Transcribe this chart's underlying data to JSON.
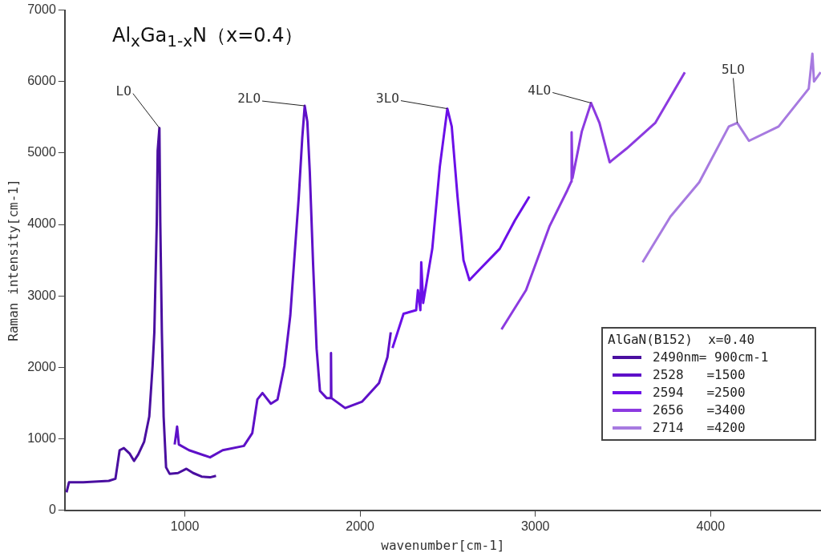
{
  "chart_data": {
    "type": "line",
    "title": "Al$_{x}$Ga$_{1-x}$N（x=0.4）",
    "xlabel": "wavenumber[cm-1]",
    "ylabel": "Raman intensity[cm-1]",
    "legend_title": "AlGaN(B152)  x=0.40",
    "legend": "bottom right",
    "grid": false,
    "marker": "none",
    "line_style": "solid",
    "xlim": [
      315,
      4630
    ],
    "xticks": [
      1000,
      2000,
      3000,
      4000
    ],
    "ylim": [
      0,
      7000
    ],
    "yticks": [
      0,
      1000,
      2000,
      3000,
      4000,
      5000,
      6000,
      7000
    ],
    "annotations": [
      {
        "text": "LO",
        "x": 855,
        "y": 5350
      },
      {
        "text": "2LO",
        "x": 1684,
        "y": 5660
      },
      {
        "text": "3LO",
        "x": 2498,
        "y": 5620
      },
      {
        "text": "4LO",
        "x": 3318,
        "y": 5700
      },
      {
        "text": "5LO",
        "x": 4152,
        "y": 5420
      }
    ],
    "series": [
      {
        "name": "2490nm= 900cm-1",
        "color": "#4a0fa0",
        "x": [
          325,
          339,
          421,
          566,
          604,
          628,
          652,
          686,
          710,
          734,
          768,
          797,
          816,
          826,
          840,
          845,
          855,
          860,
          869,
          879,
          893,
          913,
          961,
          1009,
          1048,
          1096,
          1144,
          1178
        ],
        "values": [
          250,
          390,
          390,
          410,
          440,
          840,
          870,
          790,
          690,
          780,
          960,
          1310,
          2020,
          2490,
          4030,
          5030,
          5350,
          4030,
          2490,
          1310,
          600,
          510,
          520,
          580,
          520,
          470,
          460,
          480
        ]
      },
      {
        "name": "2528   =1500",
        "color": "#5e10c8",
        "x": [
          942,
          956,
          966,
          1024,
          1144,
          1216,
          1337,
          1385,
          1414,
          1443,
          1491,
          1529,
          1568,
          1602,
          1626,
          1650,
          1670,
          1684,
          1699,
          1713,
          1732,
          1752,
          1771,
          1809,
          1832,
          1834,
          1836,
          1915,
          2012,
          2108,
          2156,
          2175
        ],
        "values": [
          920,
          1170,
          920,
          840,
          740,
          840,
          900,
          1080,
          1550,
          1640,
          1490,
          1550,
          2020,
          2730,
          3560,
          4380,
          5210,
          5660,
          5440,
          4740,
          3440,
          2260,
          1670,
          1570,
          1570,
          2200,
          1570,
          1430,
          1520,
          1780,
          2140,
          2490
        ]
      },
      {
        "name": "2594   =2500",
        "color": "#6b0fe8",
        "x": [
          2185,
          2248,
          2320,
          2330,
          2344,
          2349,
          2360,
          2412,
          2455,
          2498,
          2523,
          2556,
          2590,
          2624,
          2682,
          2797,
          2884,
          2966
        ],
        "values": [
          2270,
          2750,
          2800,
          3080,
          2800,
          3470,
          2900,
          3660,
          4810,
          5620,
          5370,
          4390,
          3500,
          3220,
          3370,
          3660,
          4060,
          4390
        ]
      },
      {
        "name": "2656   =3400",
        "color": "#8c3ae0",
        "x": [
          2807,
          2947,
          3082,
          3183,
          3205,
          3207,
          3212,
          3265,
          3318,
          3366,
          3424,
          3520,
          3684,
          3853
        ],
        "values": [
          2530,
          3080,
          3980,
          4480,
          4600,
          5290,
          4650,
          5300,
          5700,
          5420,
          4870,
          5060,
          5420,
          6130
        ]
      },
      {
        "name": "2714   =4200",
        "color": "#a77ae0",
        "x": [
          3612,
          3771,
          3935,
          4104,
          4152,
          4219,
          4388,
          4560,
          4581,
          4590,
          4628
        ],
        "values": [
          3470,
          4110,
          4590,
          5370,
          5420,
          5170,
          5370,
          5900,
          6390,
          6000,
          6130
        ]
      }
    ]
  }
}
